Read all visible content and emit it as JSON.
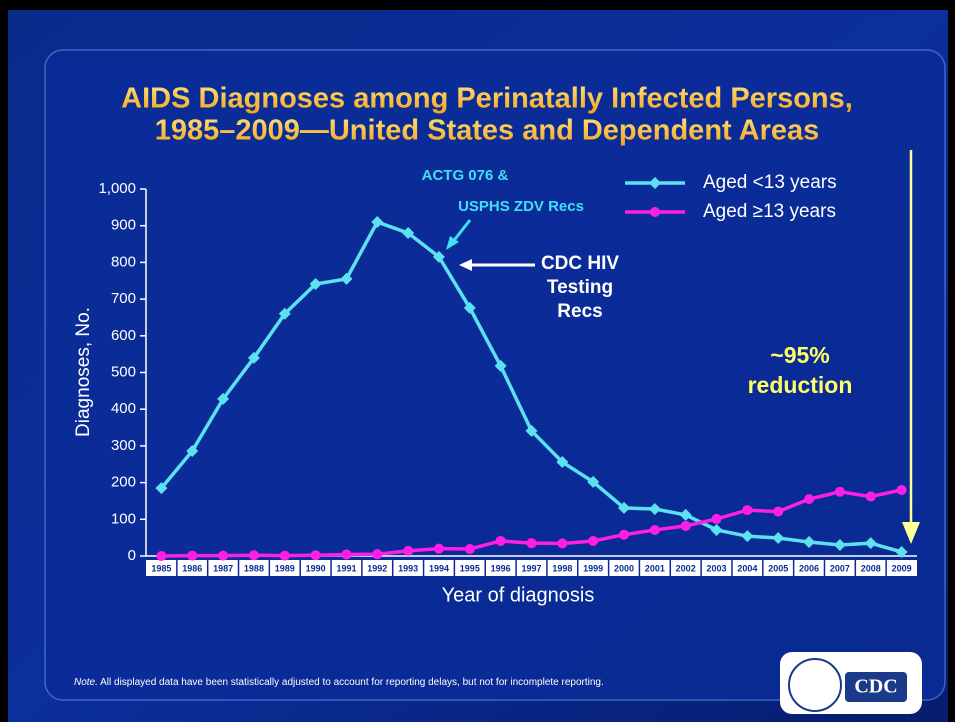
{
  "chart_data": {
    "type": "line",
    "title": [
      "AIDS Diagnoses among Perinatally Infected Persons,",
      "1985–2009—United States and Dependent Areas"
    ],
    "xlabel": "Year of diagnosis",
    "ylabel": "Diagnoses, No.",
    "categories": [
      "1985",
      "1986",
      "1987",
      "1988",
      "1989",
      "1990",
      "1991",
      "1992",
      "1993",
      "1994",
      "1995",
      "1996",
      "1997",
      "1998",
      "1999",
      "2000",
      "2001",
      "2002",
      "2003",
      "2004",
      "2005",
      "2006",
      "2007",
      "2008",
      "2009"
    ],
    "series": [
      {
        "name": "Aged <13 years",
        "color": "#5ce1f0",
        "marker": "diamond",
        "values": [
          185,
          286,
          428,
          540,
          660,
          741,
          755,
          910,
          880,
          815,
          676,
          518,
          341,
          256,
          202,
          131,
          128,
          112,
          71,
          54,
          49,
          38,
          30,
          35,
          11
        ]
      },
      {
        "name": "Aged ≥13 years",
        "color": "#ff1ee8",
        "marker": "circle",
        "values": [
          0,
          1,
          1,
          2,
          1,
          2,
          4,
          5,
          14,
          20,
          19,
          41,
          35,
          34,
          41,
          58,
          71,
          82,
          101,
          125,
          121,
          155,
          175,
          162,
          180
        ]
      }
    ],
    "ylim": [
      0,
      1000
    ],
    "yticks": [
      0,
      100,
      200,
      300,
      400,
      500,
      600,
      700,
      800,
      900,
      {
        "value": 1000,
        "label": "1,000"
      }
    ],
    "legend": "upper right",
    "annotations": {
      "actg": [
        "ACTG 076 &",
        "USPHS ZDV Recs"
      ],
      "cdc_testing": [
        "CDC HIV",
        "Testing",
        "Recs"
      ],
      "reduction": [
        "~95%",
        "reduction"
      ]
    },
    "note_label": "Note.",
    "note": " All displayed data have been statistically adjusted to account for  reporting delays, but not for incomplete reporting.",
    "logo": "CDC"
  }
}
